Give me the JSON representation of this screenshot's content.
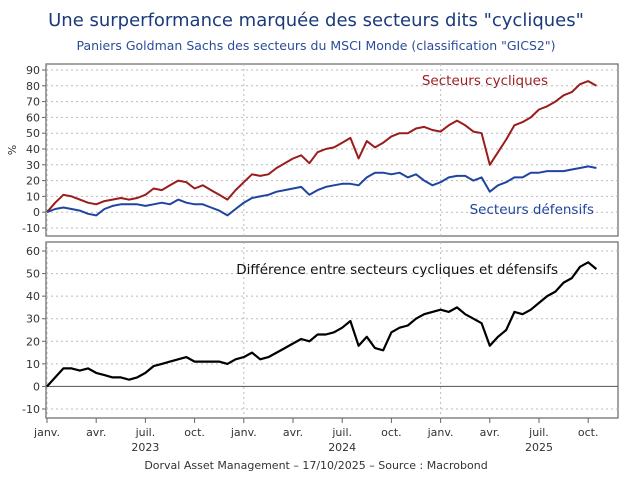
{
  "title": "Une surperformance marquée des secteurs dits \"cycliques\"",
  "subtitle": "Paniers Goldman Sachs des secteurs du MSCI Monde (classification \"GICS2\")",
  "footer": "Dorval Asset Management – 17/10/2025 –   Source : Macrobond",
  "colors": {
    "title": "#1c3a7a",
    "cyclical": "#9b1c1c",
    "defensive": "#1f45a0",
    "difference": "#000000"
  },
  "chart_data": [
    {
      "type": "line",
      "title": "",
      "ylabel": "%",
      "ylim": [
        -10,
        90
      ],
      "yticks": [
        -10,
        0,
        10,
        20,
        30,
        40,
        50,
        60,
        70,
        80,
        90
      ],
      "grid": true,
      "x_unit": "months since Jan 2023",
      "x": [
        0,
        0.5,
        1,
        1.5,
        2,
        2.5,
        3,
        3.5,
        4,
        4.5,
        5,
        5.5,
        6,
        6.5,
        7,
        7.5,
        8,
        8.5,
        9,
        9.5,
        10,
        10.5,
        11,
        11.5,
        12,
        12.5,
        13,
        13.5,
        14,
        14.5,
        15,
        15.5,
        16,
        16.5,
        17,
        17.5,
        18,
        18.5,
        19,
        19.5,
        20,
        20.5,
        21,
        21.5,
        22,
        22.5,
        23,
        23.5,
        24,
        24.5,
        25,
        25.5,
        26,
        26.5,
        27,
        27.5,
        28,
        28.5,
        29,
        29.5,
        30,
        30.5,
        31,
        31.5,
        32,
        32.5,
        33,
        33.5
      ],
      "series": [
        {
          "name": "Secteurs cycliques",
          "values": [
            0,
            6,
            11,
            10,
            8,
            6,
            5,
            7,
            8,
            9,
            8,
            9,
            11,
            15,
            14,
            17,
            20,
            19,
            15,
            17,
            14,
            11,
            8,
            14,
            19,
            24,
            23,
            24,
            28,
            31,
            34,
            36,
            31,
            38,
            40,
            41,
            44,
            47,
            34,
            45,
            41,
            44,
            48,
            50,
            50,
            53,
            54,
            52,
            51,
            55,
            58,
            55,
            51,
            50,
            30,
            38,
            46,
            55,
            57,
            60,
            65,
            67,
            70,
            74,
            76,
            81,
            83,
            80
          ]
        },
        {
          "name": "Secteurs défensifs",
          "values": [
            0,
            2,
            3,
            2,
            1,
            -1,
            -2,
            2,
            4,
            5,
            5,
            5,
            4,
            5,
            6,
            5,
            8,
            6,
            5,
            5,
            3,
            1,
            -2,
            2,
            6,
            9,
            10,
            11,
            13,
            14,
            15,
            16,
            11,
            14,
            16,
            17,
            18,
            18,
            17,
            22,
            25,
            25,
            24,
            25,
            22,
            24,
            20,
            17,
            19,
            22,
            23,
            23,
            20,
            22,
            13,
            17,
            19,
            22,
            22,
            25,
            25,
            26,
            26,
            26,
            27,
            28,
            29,
            28
          ]
        }
      ]
    },
    {
      "type": "line",
      "ylim": [
        -10,
        60
      ],
      "yticks": [
        -10,
        0,
        10,
        20,
        30,
        40,
        50,
        60
      ],
      "grid": true,
      "series": [
        {
          "name": "Différence entre secteurs cycliques et défensifs",
          "values": [
            0,
            4,
            8,
            8,
            7,
            8,
            6,
            5,
            4,
            4,
            3,
            4,
            6,
            9,
            10,
            11,
            12,
            13,
            11,
            11,
            11,
            11,
            10,
            12,
            13,
            15,
            12,
            13,
            15,
            17,
            19,
            21,
            20,
            23,
            23,
            24,
            26,
            29,
            18,
            22,
            17,
            16,
            24,
            26,
            27,
            30,
            32,
            33,
            34,
            33,
            35,
            32,
            30,
            28,
            18,
            22,
            25,
            33,
            32,
            34,
            37,
            40,
            42,
            46,
            48,
            53,
            55,
            52
          ]
        }
      ],
      "xticks": [
        {
          "m": 0,
          "label": "janv."
        },
        {
          "m": 3,
          "label": "avr."
        },
        {
          "m": 6,
          "label": "juil."
        },
        {
          "m": 9,
          "label": "oct."
        },
        {
          "m": 12,
          "label": "janv."
        },
        {
          "m": 15,
          "label": "avr."
        },
        {
          "m": 18,
          "label": "juil."
        },
        {
          "m": 21,
          "label": "oct."
        },
        {
          "m": 24,
          "label": "janv."
        },
        {
          "m": 27,
          "label": "avr."
        },
        {
          "m": 30,
          "label": "juil."
        },
        {
          "m": 33,
          "label": "oct."
        }
      ],
      "years": [
        {
          "m": 6,
          "label": "2023"
        },
        {
          "m": 18,
          "label": "2024"
        },
        {
          "m": 30,
          "label": "2025"
        }
      ]
    }
  ]
}
